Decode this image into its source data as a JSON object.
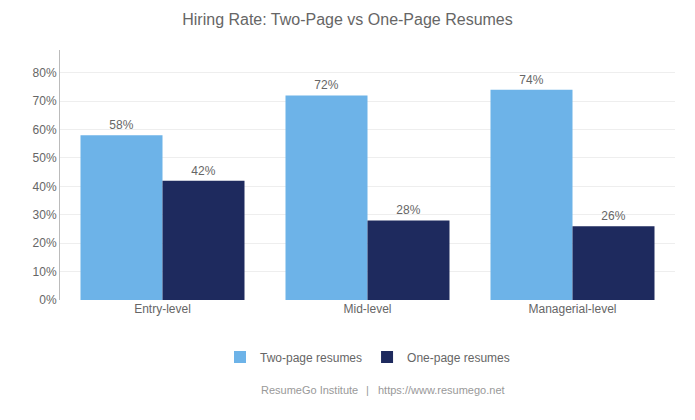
{
  "chart_data": {
    "type": "bar",
    "title": "Hiring Rate: Two-Page vs One-Page Resumes",
    "categories": [
      "Entry-level",
      "Mid-level",
      "Managerial-level"
    ],
    "series": [
      {
        "name": "Two-page resumes",
        "color": "#6db3e8",
        "values": [
          0.58,
          0.72,
          0.74
        ],
        "value_labels": [
          "58%",
          "72%",
          "74%"
        ]
      },
      {
        "name": "One-page resumes",
        "color": "#1e2a5e",
        "values": [
          0.42,
          0.28,
          0.26
        ],
        "value_labels": [
          "42%",
          "28%",
          "26%"
        ]
      }
    ],
    "ylim": [
      0,
      0.88
    ],
    "yticks": [
      {
        "value": 0,
        "label": "0%"
      },
      {
        "value": 0.1,
        "label": "10%"
      },
      {
        "value": 0.2,
        "label": "20%"
      },
      {
        "value": 0.3,
        "label": "30%"
      },
      {
        "value": 0.4,
        "label": "40%"
      },
      {
        "value": 0.5,
        "label": "50%"
      },
      {
        "value": 0.6,
        "label": "60%"
      },
      {
        "value": 0.7,
        "label": "70%"
      },
      {
        "value": 0.8,
        "label": "80%"
      }
    ],
    "grid": true,
    "legend": "bottom",
    "data_labels": true,
    "annotations": [
      "ResumeGo Institute",
      "|",
      "https://www.resumego.net"
    ]
  }
}
